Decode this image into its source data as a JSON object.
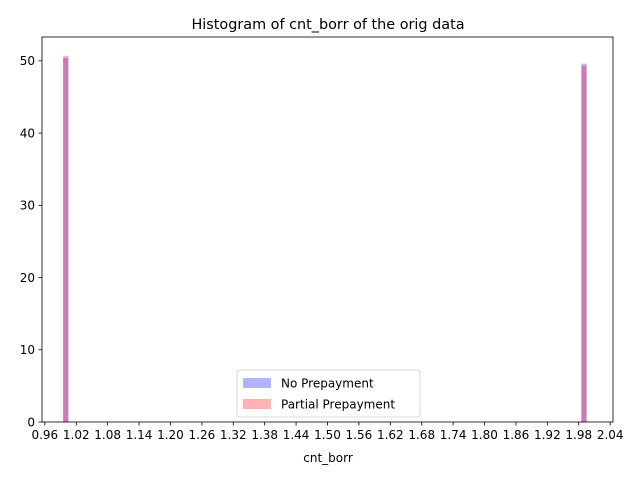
{
  "chart_data": {
    "type": "bar",
    "title": "Histogram of cnt_borr of the orig data",
    "xlabel": "cnt_borr",
    "ylabel": "",
    "xlim": [
      0.9546,
      2.0454
    ],
    "ylim": [
      0,
      53.3
    ],
    "x_ticks": [
      "0.96",
      "1.02",
      "1.08",
      "1.14",
      "1.20",
      "1.26",
      "1.32",
      "1.38",
      "1.44",
      "1.50",
      "1.56",
      "1.62",
      "1.68",
      "1.74",
      "1.80",
      "1.86",
      "1.92",
      "1.98",
      "2.04"
    ],
    "y_ticks": [
      "0",
      "10",
      "20",
      "30",
      "40",
      "50"
    ],
    "grid": false,
    "legend_position": "lower-center",
    "bar_width": 0.01,
    "series": [
      {
        "name": "No Prepayment",
        "color": "#0000ff",
        "opacity": 0.3,
        "x": [
          1.0,
          1.99
        ],
        "values": [
          50.4,
          49.6
        ]
      },
      {
        "name": "Partial Prepayment",
        "color": "#ff0000",
        "opacity": 0.3,
        "x": [
          1.0,
          1.99
        ],
        "values": [
          50.7,
          49.3
        ]
      }
    ]
  }
}
